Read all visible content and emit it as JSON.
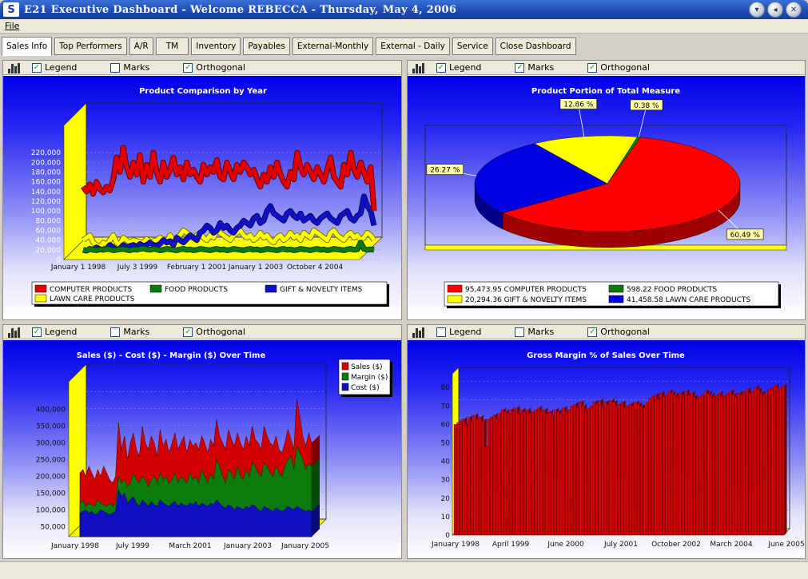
{
  "window": {
    "title": "E21 Executive Dashboard  -  Welcome REBECCA  -  Thursday, May 4, 2006",
    "icon": "app-logo-icon",
    "buttons": [
      "minimize-icon",
      "restore-icon",
      "close-icon"
    ]
  },
  "menu": {
    "file": "File"
  },
  "tabs": [
    "Sales Info",
    "Top Performers",
    "A/R",
    "TM",
    "Inventory",
    "Payables",
    "External-Monthly",
    "External - Daily",
    "Service",
    "Close Dashboard"
  ],
  "active_tab": "Sales Info",
  "panels": {
    "tl": {
      "legend": "Legend",
      "marks": "Marks",
      "orthogonal": "Orthogonal",
      "legend_checked": true,
      "marks_checked": false,
      "orthogonal_checked": true
    },
    "tr": {
      "legend": "Legend",
      "marks": "Marks",
      "orthogonal": "Orthogonal",
      "legend_checked": true,
      "marks_checked": true,
      "orthogonal_checked": true
    },
    "bl": {
      "legend": "Legend",
      "marks": "Marks",
      "orthogonal": "Orthogonal",
      "legend_checked": true,
      "marks_checked": false,
      "orthogonal_checked": true
    },
    "br": {
      "legend": "Legend",
      "marks": "Marks",
      "orthogonal": "Orthogonal",
      "legend_checked": false,
      "marks_checked": false,
      "orthogonal_checked": true
    }
  },
  "chart_data": [
    {
      "id": "tl",
      "type": "line",
      "title": "Product Comparison by Year",
      "xlabel": "",
      "ylabel": "",
      "x_ticks": [
        "January 1 1998",
        "July 3 1999",
        "February 1 2001",
        "January 1 2003",
        "October 4 2004"
      ],
      "y_ticks": [
        0,
        20000,
        40000,
        60000,
        80000,
        100000,
        120000,
        140000,
        160000,
        180000,
        200000,
        220000
      ],
      "ylim": [
        0,
        230000
      ],
      "grid": true,
      "legend_position": "bottom",
      "series": [
        {
          "name": "COMPUTER PRODUCTS",
          "color": "#e00000",
          "values": [
            150000,
            140000,
            155000,
            135000,
            160000,
            145000,
            138000,
            150000,
            142000,
            165000,
            210000,
            180000,
            230000,
            190000,
            170000,
            200000,
            175000,
            215000,
            160000,
            195000,
            170000,
            220000,
            180000,
            160000,
            200000,
            170000,
            185000,
            210000,
            175000,
            190000,
            165000,
            200000,
            175000,
            185000,
            170000,
            160000,
            195000,
            175000,
            190000,
            180000,
            205000,
            170000,
            165000,
            200000,
            180000,
            165000,
            195000,
            180000,
            200000,
            190000,
            175000,
            185000,
            165000,
            150000,
            175000,
            160000,
            190000,
            170000,
            200000,
            175000,
            160000,
            150000,
            180000,
            165000,
            220000,
            190000,
            175000,
            195000,
            180000,
            165000,
            190000,
            175000,
            160000,
            185000,
            210000,
            170000,
            160000,
            150000,
            195000,
            175000,
            220000,
            185000,
            170000,
            200000,
            180000,
            160000,
            190000,
            100000
          ]
        },
        {
          "name": "FOOD PRODUCTS",
          "color": "#0c7a0c",
          "values": [
            20000,
            18000,
            22000,
            20000,
            19000,
            21000,
            20000,
            22000,
            21000,
            19000,
            20000,
            21000,
            22000,
            20000,
            19000,
            21000,
            20000,
            22000,
            23000,
            21000,
            20000,
            22000,
            21000,
            19000,
            20000,
            22000,
            21000,
            20000,
            19000,
            21000,
            22000,
            20000,
            21000,
            19000,
            20000,
            22000,
            21000,
            20000,
            19000,
            21000,
            22000,
            20000,
            21000,
            19000,
            20000,
            22000,
            21000,
            20000,
            19000,
            21000,
            22000,
            20000,
            21000,
            19000,
            20000,
            22000,
            21000,
            20000,
            19000,
            21000,
            22000,
            20000,
            21000,
            19000,
            20000,
            22000,
            21000,
            20000,
            19000,
            21000,
            22000,
            20000,
            21000,
            19000,
            20000,
            22000,
            21000,
            20000,
            19000,
            21000,
            22000,
            20000,
            21000,
            35000,
            22000,
            20000,
            21000,
            20000
          ]
        },
        {
          "name": "GIFT & NOVELTY ITEMS",
          "color": "#1010c8",
          "values": [
            20000,
            18000,
            22000,
            20000,
            25000,
            21000,
            20000,
            22000,
            30000,
            25000,
            20000,
            22000,
            30000,
            25000,
            28000,
            30000,
            25000,
            32000,
            28000,
            30000,
            35000,
            30000,
            28000,
            32000,
            40000,
            35000,
            38000,
            30000,
            45000,
            40000,
            35000,
            42000,
            50000,
            45000,
            40000,
            55000,
            60000,
            70000,
            65000,
            55000,
            60000,
            75000,
            65000,
            70000,
            60000,
            55000,
            65000,
            70000,
            80000,
            75000,
            70000,
            85000,
            90000,
            75000,
            80000,
            100000,
            110000,
            95000,
            90000,
            85000,
            80000,
            95000,
            100000,
            90000,
            85000,
            95000,
            80000,
            85000,
            90000,
            80000,
            75000,
            85000,
            90000,
            95000,
            85000,
            80000,
            75000,
            90000,
            95000,
            100000,
            85000,
            80000,
            90000,
            95000,
            130000,
            110000,
            100000,
            70000
          ]
        },
        {
          "name": "LAWN CARE PRODUCTS",
          "color": "#ffff00",
          "values": [
            40000,
            45000,
            50000,
            35000,
            30000,
            25000,
            35000,
            30000,
            40000,
            50000,
            35000,
            30000,
            45000,
            40000,
            35000,
            40000,
            38000,
            36000,
            34000,
            42000,
            36000,
            38000,
            40000,
            45000,
            40000,
            35000,
            50000,
            40000,
            45000,
            50000,
            60000,
            55000,
            50000,
            45000,
            50000,
            55000,
            45000,
            40000,
            50000,
            45000,
            60000,
            55000,
            50000,
            45000,
            40000,
            50000,
            55000,
            60000,
            50000,
            45000,
            50000,
            40000,
            45000,
            55000,
            45000,
            50000,
            40000,
            35000,
            45000,
            50000,
            40000,
            45000,
            55000,
            45000,
            50000,
            40000,
            55000,
            50000,
            45000,
            60000,
            55000,
            50000,
            45000,
            40000,
            55000,
            60000,
            50000,
            45000,
            40000,
            50000,
            55000,
            45000,
            50000,
            40000,
            45000,
            55000,
            50000,
            40000
          ]
        }
      ]
    },
    {
      "id": "tr",
      "type": "pie",
      "title": "Product Portion of Total Measure",
      "slices": [
        {
          "label": "60.49 %",
          "value": 60.49,
          "color": "#ff0000"
        },
        {
          "label": "26.27 %",
          "value": 26.27,
          "color": "#0000e0"
        },
        {
          "label": "12.86 %",
          "value": 12.86,
          "color": "#ffff00"
        },
        {
          "label": "0.38 %",
          "value": 0.38,
          "color": "#008000"
        }
      ],
      "legend": [
        {
          "label": "95,473.95 COMPUTER PRODUCTS",
          "color": "#ff0000"
        },
        {
          "label": "598.22 FOOD PRODUCTS",
          "color": "#0c7a0c"
        },
        {
          "label": "20,294.36 GIFT & NOVELTY ITEMS",
          "color": "#ffff00"
        },
        {
          "label": "41,458.58 LAWN CARE PRODUCTS",
          "color": "#0000e0"
        }
      ],
      "legend_position": "bottom"
    },
    {
      "id": "bl",
      "type": "area",
      "title": "Sales ($) - Cost ($) - Margin ($) Over Time",
      "xlabel": "",
      "ylabel": "",
      "x_ticks": [
        "January 1998",
        "July 1999",
        "March 2001",
        "January 2003",
        "January 2005"
      ],
      "y_ticks": [
        50000,
        100000,
        150000,
        200000,
        250000,
        300000,
        350000,
        400000
      ],
      "ylim": [
        20000,
        430000
      ],
      "grid": true,
      "legend_position": "top-right",
      "series": [
        {
          "name": "Sales ($)",
          "color": "#d00000",
          "values": [
            210000,
            220000,
            200000,
            230000,
            210000,
            190000,
            220000,
            200000,
            230000,
            210000,
            190000,
            180000,
            200000,
            360000,
            280000,
            320000,
            250000,
            300000,
            330000,
            280000,
            260000,
            350000,
            300000,
            280000,
            320000,
            300000,
            260000,
            340000,
            290000,
            310000,
            270000,
            300000,
            330000,
            280000,
            300000,
            320000,
            270000,
            310000,
            290000,
            300000,
            280000,
            320000,
            300000,
            270000,
            310000,
            290000,
            370000,
            320000,
            300000,
            280000,
            340000,
            310000,
            290000,
            330000,
            300000,
            280000,
            320000,
            290000,
            350000,
            310000,
            300000,
            280000,
            350000,
            320000,
            300000,
            290000,
            320000,
            280000,
            270000,
            300000,
            340000,
            310000,
            280000,
            430000,
            380000,
            320000,
            290000,
            330000,
            300000
          ]
        },
        {
          "name": "Margin ($)",
          "color": "#0c7a0c",
          "values": [
            120000,
            130000,
            110000,
            120000,
            115000,
            110000,
            130000,
            120000,
            115000,
            110000,
            120000,
            110000,
            120000,
            200000,
            180000,
            190000,
            170000,
            180000,
            210000,
            190000,
            180000,
            200000,
            190000,
            170000,
            190000,
            200000,
            180000,
            210000,
            190000,
            200000,
            180000,
            190000,
            210000,
            180000,
            200000,
            190000,
            180000,
            210000,
            190000,
            200000,
            180000,
            220000,
            200000,
            180000,
            210000,
            190000,
            250000,
            230000,
            200000,
            180000,
            220000,
            210000,
            190000,
            230000,
            200000,
            190000,
            220000,
            200000,
            240000,
            230000,
            210000,
            200000,
            240000,
            230000,
            210000,
            200000,
            230000,
            210000,
            200000,
            230000,
            250000,
            260000,
            220000,
            290000,
            270000,
            250000,
            220000,
            240000,
            230000
          ]
        },
        {
          "name": "Cost ($)",
          "color": "#1010c0",
          "values": [
            90000,
            95000,
            100000,
            90000,
            95000,
            85000,
            90000,
            100000,
            95000,
            90000,
            85000,
            90000,
            95000,
            160000,
            140000,
            150000,
            120000,
            130000,
            140000,
            120000,
            110000,
            130000,
            120000,
            110000,
            125000,
            115000,
            110000,
            130000,
            120000,
            115000,
            110000,
            120000,
            125000,
            110000,
            120000,
            115000,
            110000,
            120000,
            115000,
            125000,
            110000,
            120000,
            115000,
            110000,
            120000,
            115000,
            130000,
            120000,
            110000,
            105000,
            115000,
            110000,
            100000,
            110000,
            105000,
            100000,
            110000,
            105000,
            115000,
            110000,
            100000,
            95000,
            110000,
            105000,
            100000,
            95000,
            105000,
            100000,
            95000,
            100000,
            110000,
            105000,
            100000,
            110000,
            105000,
            100000,
            95000,
            100000,
            95000
          ]
        }
      ]
    },
    {
      "id": "br",
      "type": "bar",
      "title": "Gross Margin  % of Sales Over Time",
      "xlabel": "",
      "ylabel": "",
      "x_ticks": [
        "January 1998",
        "April 1999",
        "June 2000",
        "July 2001",
        "October 2002",
        "March 2004",
        "June 2005"
      ],
      "y_ticks": [
        0,
        10,
        20,
        30,
        40,
        50,
        60,
        70,
        80
      ],
      "ylim": [
        0,
        84
      ],
      "grid": true,
      "color": "#d00000",
      "values": [
        60,
        61,
        62,
        63,
        60,
        64,
        62,
        65,
        63,
        64,
        62,
        48,
        63,
        64,
        65,
        63,
        66,
        68,
        67,
        66,
        68,
        67,
        69,
        66,
        68,
        67,
        68,
        66,
        67,
        68,
        69,
        67,
        68,
        66,
        67,
        65,
        68,
        67,
        66,
        69,
        67,
        68,
        70,
        71,
        69,
        72,
        70,
        68,
        69,
        70,
        72,
        71,
        73,
        70,
        72,
        71,
        73,
        72,
        70,
        71,
        72,
        69,
        70,
        71,
        70,
        72,
        71,
        70,
        69,
        72,
        74,
        75,
        76,
        74,
        77,
        75,
        76,
        78,
        77,
        76,
        75,
        77,
        76,
        78,
        76,
        77,
        75,
        74,
        75,
        76,
        78,
        77,
        76,
        75,
        76,
        77,
        75,
        76,
        77,
        78,
        76,
        75,
        77,
        76,
        78,
        79,
        77,
        78,
        80,
        79,
        77,
        76,
        78,
        79,
        80,
        81,
        79,
        80,
        81
      ]
    }
  ]
}
